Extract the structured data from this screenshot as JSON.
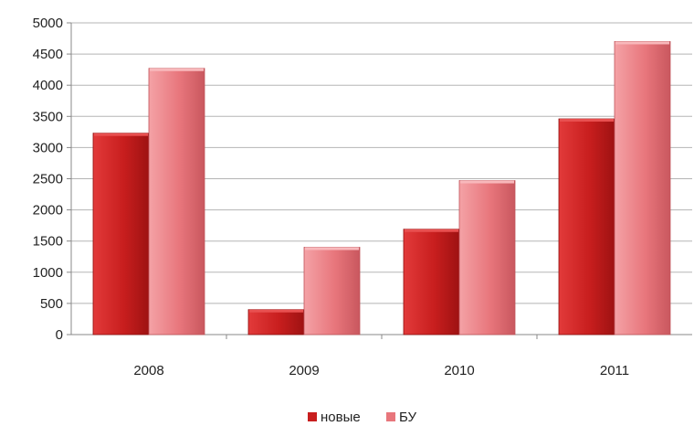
{
  "chart_data": {
    "type": "bar",
    "title": "",
    "xlabel": "",
    "ylabel": "",
    "categories": [
      "2008",
      "2009",
      "2010",
      "2011"
    ],
    "series": [
      {
        "name": "новые",
        "values": [
          3230,
          400,
          1690,
          3460
        ],
        "color": "#c81e1e"
      },
      {
        "name": "БУ",
        "values": [
          4270,
          1400,
          2470,
          4700
        ],
        "color": "#e8767c"
      }
    ],
    "ylim": [
      0,
      5000
    ],
    "yticks": [
      0,
      500,
      1000,
      1500,
      2000,
      2500,
      3000,
      3500,
      4000,
      4500,
      5000
    ],
    "grid": true,
    "legend": "bottom-center"
  }
}
